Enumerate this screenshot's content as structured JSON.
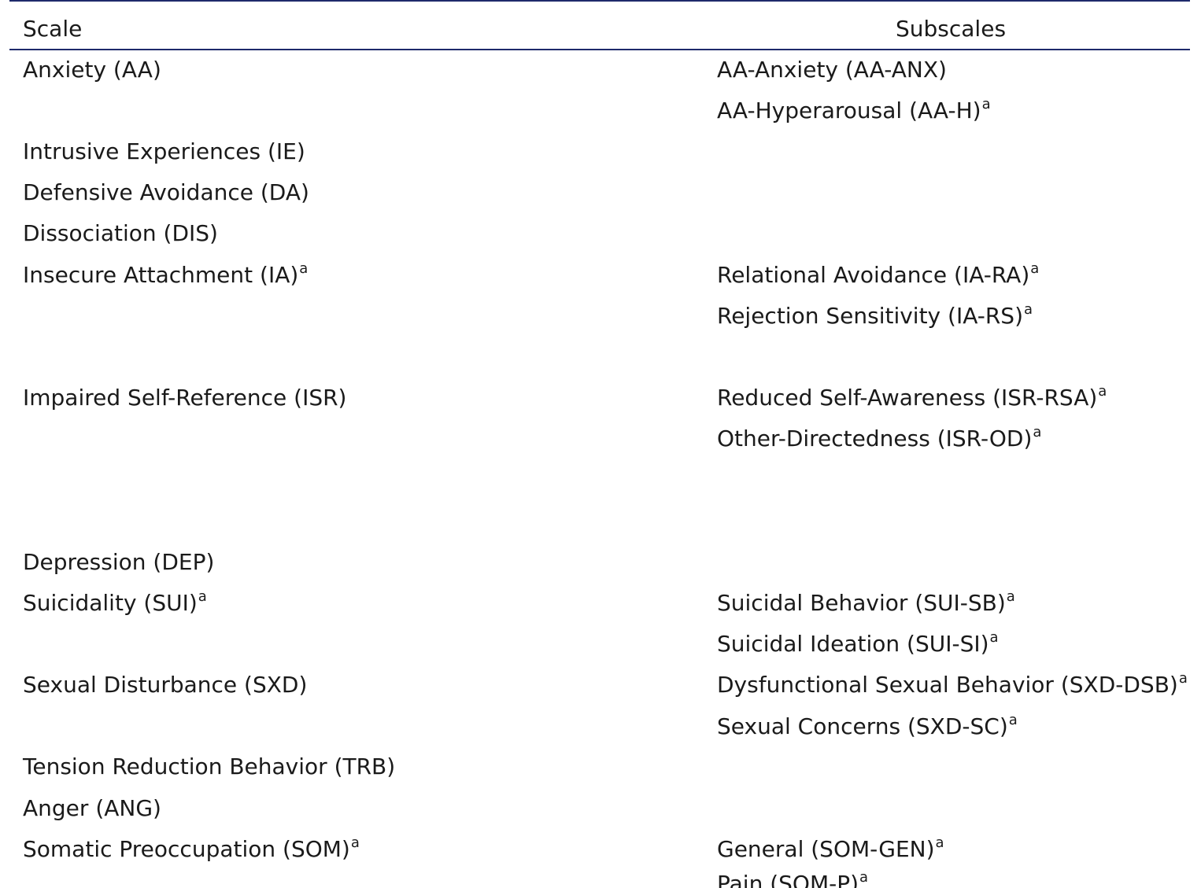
{
  "table": {
    "headers": {
      "scale": "Scale",
      "subscales": "Subscales"
    },
    "scales": [
      {
        "label": "Anxiety (AA)",
        "sup": ""
      },
      {
        "label": "Intrusive Experiences (IE)",
        "sup": ""
      },
      {
        "label": "Defensive Avoidance (DA)",
        "sup": ""
      },
      {
        "label": "Dissociation (DIS)",
        "sup": ""
      },
      {
        "label": "Insecure Attachment (IA)",
        "sup": "a"
      },
      {
        "label": "Impaired Self-Reference (ISR)",
        "sup": ""
      },
      {
        "label": "Depression (DEP)",
        "sup": ""
      },
      {
        "label": "Suicidality (SUI)",
        "sup": "a"
      },
      {
        "label": "Sexual Disturbance (SXD)",
        "sup": ""
      },
      {
        "label": "Tension Reduction Behavior (TRB)",
        "sup": ""
      },
      {
        "label": "Anger (ANG)",
        "sup": ""
      },
      {
        "label": "Somatic Preoccupation (SOM)",
        "sup": "a"
      }
    ],
    "subscales": [
      {
        "label": "AA-Anxiety (AA-ANX)",
        "sup": ""
      },
      {
        "label": "AA-Hyperarousal (AA-H)",
        "sup": "a"
      },
      {
        "label": "Relational Avoidance (IA-RA)",
        "sup": "a"
      },
      {
        "label": "Rejection Sensitivity (IA-RS)",
        "sup": "a"
      },
      {
        "label": "Reduced Self-Awareness (ISR-RSA)",
        "sup": "a"
      },
      {
        "label": "Other-Directedness (ISR-OD)",
        "sup": "a"
      },
      {
        "label": "Suicidal Behavior (SUI-SB)",
        "sup": "a"
      },
      {
        "label": "Suicidal Ideation (SUI-SI)",
        "sup": "a"
      },
      {
        "label": "Dysfunctional Sexual Behavior (SXD-DSB)",
        "sup": "a"
      },
      {
        "label": "Sexual Concerns (SXD-SC)",
        "sup": "a"
      },
      {
        "label": "General (SOM-GEN)",
        "sup": "a"
      },
      {
        "label": "Pain (SOM-P)",
        "sup": "a"
      }
    ]
  },
  "colors": {
    "rule": "#1e2a6b",
    "text": "#1a1a1a"
  }
}
